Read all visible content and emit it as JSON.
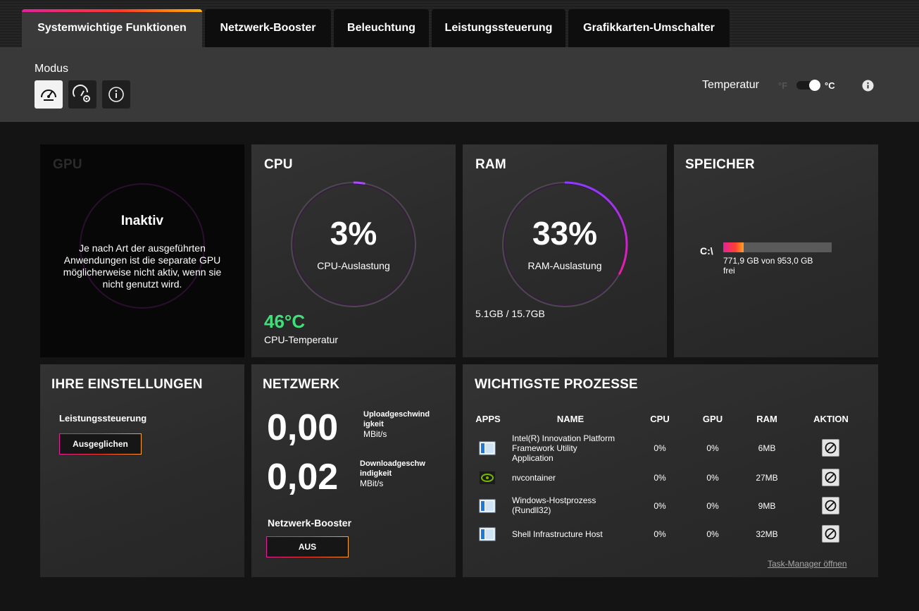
{
  "tabs": [
    {
      "label": "Systemwichtige Funktionen"
    },
    {
      "label": "Netzwerk-Booster"
    },
    {
      "label": "Beleuchtung"
    },
    {
      "label": "Leistungssteuerung"
    },
    {
      "label": "Grafikkarten-Umschalter"
    }
  ],
  "modebar": {
    "modus_label": "Modus",
    "temperature_label": "Temperatur",
    "unit_f": "°F",
    "unit_c": "°C",
    "selected_unit": "°C"
  },
  "gpu": {
    "title": "GPU",
    "status": "Inaktiv",
    "description": "Je nach Art der ausgeführten Anwendungen ist die separate GPU möglicherweise nicht aktiv, wenn sie nicht genutzt wird."
  },
  "cpu": {
    "title": "CPU",
    "usage": "3%",
    "usage_label": "CPU-Auslastung",
    "usage_fraction": 0.03,
    "temperature": "46°C",
    "temperature_label": "CPU-Temperatur"
  },
  "ram": {
    "title": "RAM",
    "usage": "33%",
    "usage_label": "RAM-Auslastung",
    "usage_fraction": 0.33,
    "amount": "5.1GB / 15.7GB"
  },
  "storage": {
    "title": "SPEICHER",
    "drive": "C:\\",
    "free_line1": "771,9 GB von 953,0 GB",
    "free_line2": "frei",
    "used_fraction": 0.19
  },
  "settings": {
    "title": "IHRE EINSTELLUNGEN",
    "performance_label": "Leistungssteuerung",
    "performance_value": "Ausgeglichen"
  },
  "network": {
    "title": "NETZWERK",
    "upload_value": "0,00",
    "upload_label_1": "Uploadgeschwind",
    "upload_label_2": "igkeit",
    "upload_unit": "MBit/s",
    "download_value": "0,02",
    "download_label_1": "Downloadgeschw",
    "download_label_2": "indigkeit",
    "download_unit": "MBit/s",
    "booster_label": "Netzwerk-Booster",
    "booster_value": "AUS"
  },
  "processes": {
    "title": "WICHTIGSTE PROZESSE",
    "headers": {
      "apps": "APPS",
      "name": "NAME",
      "cpu": "CPU",
      "gpu": "GPU",
      "ram": "RAM",
      "action": "AKTION"
    },
    "rows": [
      {
        "name_1": "Intel(R) Innovation Platform",
        "name_2": "Framework Utility",
        "name_3": "Application",
        "cpu": "0%",
        "gpu": "0%",
        "ram": "6MB",
        "icon": "window-app-icon"
      },
      {
        "name_1": "nvcontainer",
        "cpu": "0%",
        "gpu": "0%",
        "ram": "27MB",
        "icon": "nvidia-icon"
      },
      {
        "name_1": "Windows-Hostprozess",
        "name_2": "(Rundll32)",
        "cpu": "0%",
        "gpu": "0%",
        "ram": "9MB",
        "icon": "window-app-icon"
      },
      {
        "name_1": "Shell Infrastructure Host",
        "cpu": "0%",
        "gpu": "0%",
        "ram": "32MB",
        "icon": "window-app-icon"
      }
    ],
    "task_manager_link": "Task-Manager öffnen"
  },
  "colors": {
    "accent_pink": "#e3219c",
    "accent_orange": "#ffa321",
    "gauge_purple": "#a64dff",
    "temp_green": "#3fe07a"
  }
}
